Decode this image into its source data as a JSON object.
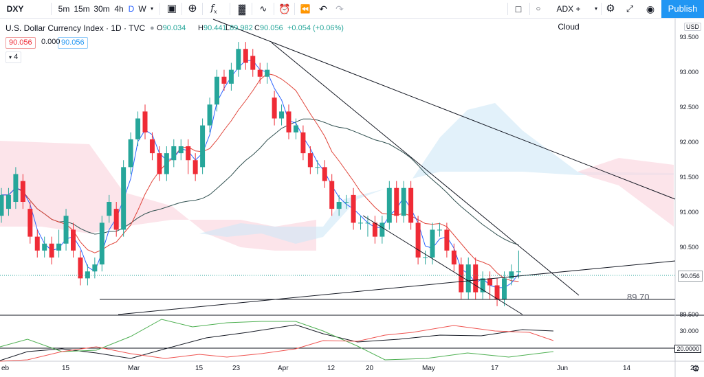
{
  "toolbar": {
    "symbol": "DXY",
    "intervals": [
      "5m",
      "15m",
      "30m",
      "4h",
      "D",
      "W"
    ],
    "active_interval": "D",
    "indicators_label": "ADX + Cloud",
    "publish_label": "Publish",
    "icons": [
      "bar-style-icon",
      "add-icon",
      "fx-icon",
      "compare-icon",
      "indicators-icon",
      "alert-icon",
      "replay-icon",
      "undo-icon",
      "redo-icon",
      "layout-icon",
      "settings-icon",
      "fullscreen-icon",
      "camera-icon"
    ]
  },
  "legend": {
    "title": "U.S. Dollar Currency Index · 1D · TVC",
    "o_label": "O",
    "o": "90.034",
    "h_label": "H",
    "h": "90.441",
    "l_label": "L",
    "l": "89.982",
    "c_label": "C",
    "c": "90.056",
    "change": "+0.054 (+0.06%)",
    "ind_value1": "90.056",
    "ind_value2": "0.000",
    "ind_value3": "90.056",
    "collapse_count": "4"
  },
  "axis": {
    "currency": "USD",
    "price_ticks": [
      "93.500",
      "93.000",
      "92.500",
      "92.000",
      "91.500",
      "91.000",
      "90.500",
      "90.000",
      "89.500"
    ],
    "adx_ticks": [
      "30.000",
      "20.0000"
    ],
    "date_ticks": [
      "eb",
      "15",
      "Mar",
      "15",
      "23",
      "Apr",
      "12",
      "20",
      "May",
      "17",
      "Jun",
      "14",
      "21"
    ],
    "last_price": "90.056"
  },
  "annotations": {
    "support_level": "89.70"
  },
  "chart_data": {
    "type": "candlestick",
    "ylim": [
      89.5,
      93.6
    ],
    "candles": [
      {
        "o": 90.9,
        "c": 91.2,
        "h": 91.3,
        "l": 90.8
      },
      {
        "o": 91.0,
        "c": 91.2,
        "h": 91.3,
        "l": 90.9
      },
      {
        "o": 91.1,
        "c": 91.5,
        "h": 91.6,
        "l": 91.0
      },
      {
        "o": 91.4,
        "c": 91.1,
        "h": 91.5,
        "l": 91.0
      },
      {
        "o": 91.0,
        "c": 90.6,
        "h": 91.1,
        "l": 90.5
      },
      {
        "o": 90.6,
        "c": 90.4,
        "h": 90.7,
        "l": 90.3
      },
      {
        "o": 90.4,
        "c": 90.5,
        "h": 90.6,
        "l": 90.3
      },
      {
        "o": 90.5,
        "c": 90.3,
        "h": 90.6,
        "l": 90.2
      },
      {
        "o": 90.4,
        "c": 90.5,
        "h": 90.7,
        "l": 90.3
      },
      {
        "o": 90.5,
        "c": 90.9,
        "h": 91.0,
        "l": 90.4
      },
      {
        "o": 90.7,
        "c": 90.4,
        "h": 90.8,
        "l": 90.3
      },
      {
        "o": 90.3,
        "c": 90.0,
        "h": 90.4,
        "l": 89.9
      },
      {
        "o": 90.0,
        "c": 90.1,
        "h": 90.2,
        "l": 89.9
      },
      {
        "o": 90.1,
        "c": 90.2,
        "h": 90.3,
        "l": 90.0
      },
      {
        "o": 90.2,
        "c": 90.8,
        "h": 90.9,
        "l": 90.1
      },
      {
        "o": 90.9,
        "c": 91.1,
        "h": 91.2,
        "l": 90.8
      },
      {
        "o": 91.0,
        "c": 90.7,
        "h": 91.1,
        "l": 90.6
      },
      {
        "o": 90.7,
        "c": 91.6,
        "h": 91.7,
        "l": 90.6
      },
      {
        "o": 91.6,
        "c": 92.0,
        "h": 92.1,
        "l": 91.5
      },
      {
        "o": 92.0,
        "c": 92.3,
        "h": 92.4,
        "l": 91.9
      },
      {
        "o": 92.4,
        "c": 92.1,
        "h": 92.5,
        "l": 92.0
      },
      {
        "o": 92.0,
        "c": 91.8,
        "h": 92.1,
        "l": 91.7
      },
      {
        "o": 91.8,
        "c": 91.5,
        "h": 91.9,
        "l": 91.4
      },
      {
        "o": 91.5,
        "c": 91.8,
        "h": 91.9,
        "l": 91.4
      },
      {
        "o": 91.7,
        "c": 91.9,
        "h": 92.0,
        "l": 91.6
      },
      {
        "o": 91.8,
        "c": 91.9,
        "h": 92.0,
        "l": 91.7
      },
      {
        "o": 91.9,
        "c": 91.7,
        "h": 92.0,
        "l": 91.5
      },
      {
        "o": 91.7,
        "c": 91.5,
        "h": 91.8,
        "l": 91.4
      },
      {
        "o": 91.6,
        "c": 92.2,
        "h": 92.3,
        "l": 91.5
      },
      {
        "o": 92.2,
        "c": 92.5,
        "h": 92.6,
        "l": 92.1
      },
      {
        "o": 92.5,
        "c": 92.9,
        "h": 93.0,
        "l": 92.4
      },
      {
        "o": 92.9,
        "c": 92.8,
        "h": 93.0,
        "l": 92.7
      },
      {
        "o": 92.8,
        "c": 93.0,
        "h": 93.1,
        "l": 92.7
      },
      {
        "o": 93.0,
        "c": 93.3,
        "h": 93.4,
        "l": 92.9
      },
      {
        "o": 93.3,
        "c": 93.1,
        "h": 93.4,
        "l": 93.0
      },
      {
        "o": 93.2,
        "c": 93.0,
        "h": 93.3,
        "l": 92.9
      },
      {
        "o": 93.0,
        "c": 92.9,
        "h": 93.1,
        "l": 92.8
      },
      {
        "o": 92.9,
        "c": 93.0,
        "h": 93.1,
        "l": 92.8
      },
      {
        "o": 92.6,
        "c": 92.3,
        "h": 92.7,
        "l": 92.2
      },
      {
        "o": 92.3,
        "c": 92.4,
        "h": 92.5,
        "l": 92.2
      },
      {
        "o": 92.4,
        "c": 92.1,
        "h": 92.5,
        "l": 92.0
      },
      {
        "o": 92.1,
        "c": 92.2,
        "h": 92.3,
        "l": 92.0
      },
      {
        "o": 92.1,
        "c": 91.8,
        "h": 92.2,
        "l": 91.7
      },
      {
        "o": 91.8,
        "c": 91.6,
        "h": 91.9,
        "l": 91.5
      },
      {
        "o": 91.6,
        "c": 91.6,
        "h": 91.7,
        "l": 91.5
      },
      {
        "o": 91.6,
        "c": 91.4,
        "h": 91.7,
        "l": 91.3
      },
      {
        "o": 91.4,
        "c": 91.0,
        "h": 91.5,
        "l": 90.9
      },
      {
        "o": 91.0,
        "c": 91.1,
        "h": 91.2,
        "l": 90.9
      },
      {
        "o": 91.1,
        "c": 91.1,
        "h": 91.2,
        "l": 91.0
      },
      {
        "o": 91.2,
        "c": 90.8,
        "h": 91.3,
        "l": 90.7
      },
      {
        "o": 90.8,
        "c": 90.8,
        "h": 90.9,
        "l": 90.7
      },
      {
        "o": 90.8,
        "c": 90.8,
        "h": 90.9,
        "l": 90.6
      },
      {
        "o": 90.8,
        "c": 90.6,
        "h": 90.9,
        "l": 90.5
      },
      {
        "o": 90.6,
        "c": 90.8,
        "h": 90.9,
        "l": 90.5
      },
      {
        "o": 90.8,
        "c": 91.3,
        "h": 91.4,
        "l": 90.7
      },
      {
        "o": 91.3,
        "c": 90.9,
        "h": 91.4,
        "l": 90.8
      },
      {
        "o": 90.9,
        "c": 91.3,
        "h": 91.4,
        "l": 90.8
      },
      {
        "o": 91.3,
        "c": 90.8,
        "h": 91.4,
        "l": 90.7
      },
      {
        "o": 90.8,
        "c": 90.3,
        "h": 90.9,
        "l": 90.2
      },
      {
        "o": 90.3,
        "c": 90.3,
        "h": 90.4,
        "l": 90.2
      },
      {
        "o": 90.3,
        "c": 90.7,
        "h": 90.8,
        "l": 90.2
      },
      {
        "o": 90.7,
        "c": 90.7,
        "h": 90.8,
        "l": 90.6
      },
      {
        "o": 90.7,
        "c": 90.4,
        "h": 90.8,
        "l": 90.3
      },
      {
        "o": 90.4,
        "c": 90.2,
        "h": 90.5,
        "l": 90.1
      },
      {
        "o": 90.2,
        "c": 89.8,
        "h": 90.3,
        "l": 89.7
      },
      {
        "o": 89.8,
        "c": 90.2,
        "h": 90.3,
        "l": 89.7
      },
      {
        "o": 90.2,
        "c": 89.8,
        "h": 90.3,
        "l": 89.7
      },
      {
        "o": 89.8,
        "c": 90.0,
        "h": 90.1,
        "l": 89.7
      },
      {
        "o": 90.0,
        "c": 89.9,
        "h": 90.1,
        "l": 89.7
      },
      {
        "o": 89.9,
        "c": 89.7,
        "h": 90.0,
        "l": 89.6
      },
      {
        "o": 89.7,
        "c": 90.0,
        "h": 90.1,
        "l": 89.6
      },
      {
        "o": 90.0,
        "c": 90.1,
        "h": 90.2,
        "l": 89.9
      },
      {
        "o": 90.1,
        "c": 90.1,
        "h": 90.4,
        "l": 90.0
      }
    ],
    "colors": {
      "up": "#26a69a",
      "down": "#ef2b36",
      "tenkan": "#2962ff",
      "kijun": "#e0453a",
      "baseline": "#2f4f4f",
      "cloud_bull": "#cfe7f7",
      "cloud_bear": "#fbd8e1",
      "adx": "#131722",
      "di_plus": "#4caf50",
      "di_minus": "#ef5350"
    }
  }
}
